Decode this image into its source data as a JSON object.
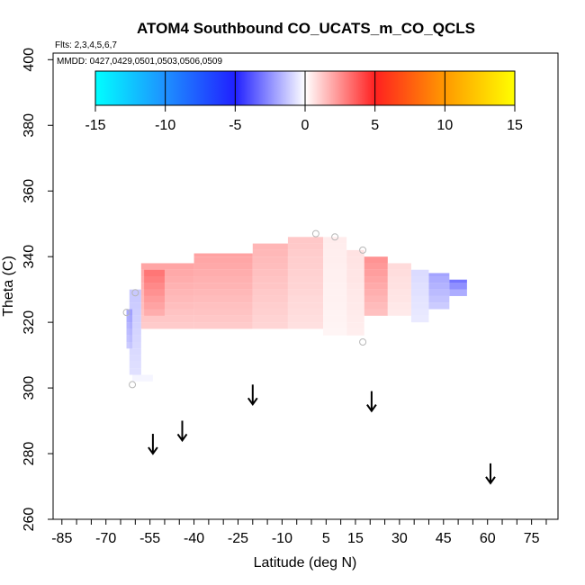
{
  "chart_data": {
    "type": "heatmap",
    "title": "ATOM4 Southbound CO_UCATS_m_CO_QCLS",
    "flights_label": "Flts: 2,3,4,5,6,7",
    "dates_label": "MMDD: 0427,0429,0501,0503,0506,0509",
    "xlabel": "Latitude (deg N)",
    "ylabel": "Theta (C)",
    "xlim": [
      -88,
      84
    ],
    "ylim": [
      260,
      402
    ],
    "x_ticks": [
      -85,
      -70,
      -55,
      -40,
      -25,
      -10,
      5,
      15,
      30,
      45,
      60,
      75
    ],
    "x_tick_labels": [
      "-85",
      "-70",
      "-55",
      "-40",
      "-25",
      "-10",
      "5",
      "15",
      "30",
      "45",
      "60",
      "75"
    ],
    "y_ticks": [
      260,
      280,
      300,
      320,
      340,
      360,
      380,
      400
    ],
    "y_tick_labels": [
      "260",
      "280",
      "300",
      "320",
      "340",
      "360",
      "380",
      "400"
    ],
    "colorbar": {
      "min": -15,
      "max": 15,
      "ticks": [
        -15,
        -10,
        -5,
        0,
        5,
        10,
        15
      ],
      "tick_labels": [
        "-15",
        "-10",
        "-5",
        "0",
        "5",
        "10",
        "15"
      ],
      "stops": [
        {
          "value": -15,
          "color": "#00ffff"
        },
        {
          "value": -10,
          "color": "#1e90ff"
        },
        {
          "value": -5,
          "color": "#2020ff"
        },
        {
          "value": 0,
          "color": "#ffffff"
        },
        {
          "value": 5,
          "color": "#ff2020"
        },
        {
          "value": 10,
          "color": "#ff9900"
        },
        {
          "value": 15,
          "color": "#ffff00"
        }
      ]
    },
    "profiles": [
      {
        "lat": -60.5,
        "theta_bottom": 301,
        "theta_top": 329,
        "value": -1.5
      },
      {
        "lat": 1.5,
        "theta_bottom": 315,
        "theta_top": 347,
        "value": 1.5
      },
      {
        "lat": 8,
        "theta_bottom": 316,
        "theta_top": 346,
        "value": 0.5
      },
      {
        "lat": 17.5,
        "theta_bottom": 314,
        "theta_top": 342,
        "value": 3.0
      }
    ],
    "cells": [
      {
        "lat0": -61,
        "lat1": -54,
        "th0": 302,
        "th1": 304,
        "value": -0.5
      },
      {
        "lat0": -62,
        "lat1": -58,
        "th0": 304,
        "th1": 330,
        "value": -1.5
      },
      {
        "lat0": -63,
        "lat1": -61,
        "th0": 312,
        "th1": 324,
        "value": -2.5
      },
      {
        "lat0": -58,
        "lat1": -40,
        "th0": 318,
        "th1": 338,
        "value": 2.5
      },
      {
        "lat0": -57,
        "lat1": -50,
        "th0": 322,
        "th1": 336,
        "value": 3.5
      },
      {
        "lat0": -40,
        "lat1": -20,
        "th0": 318,
        "th1": 341,
        "value": 2.5
      },
      {
        "lat0": -20,
        "lat1": -8,
        "th0": 318,
        "th1": 344,
        "value": 2.0
      },
      {
        "lat0": -8,
        "lat1": 4,
        "th0": 318,
        "th1": 346,
        "value": 1.5
      },
      {
        "lat0": 4,
        "lat1": 12,
        "th0": 316,
        "th1": 346,
        "value": 0.5
      },
      {
        "lat0": 12,
        "lat1": 18,
        "th0": 316,
        "th1": 342,
        "value": 0.8
      },
      {
        "lat0": 18,
        "lat1": 26,
        "th0": 322,
        "th1": 340,
        "value": 3.0
      },
      {
        "lat0": 26,
        "lat1": 34,
        "th0": 322,
        "th1": 338,
        "value": 1.0
      },
      {
        "lat0": 34,
        "lat1": 40,
        "th0": 320,
        "th1": 336,
        "value": -1.0
      },
      {
        "lat0": 40,
        "lat1": 47,
        "th0": 324,
        "th1": 335,
        "value": -2.5
      },
      {
        "lat0": 47,
        "lat1": 53,
        "th0": 328,
        "th1": 333,
        "value": -4.0
      }
    ],
    "markers": [
      {
        "lat": -61,
        "theta": 301
      },
      {
        "lat": -60,
        "theta": 329
      },
      {
        "lat": -63,
        "theta": 323
      },
      {
        "lat": 1.5,
        "theta": 347
      },
      {
        "lat": 8,
        "theta": 346
      },
      {
        "lat": 17.5,
        "theta": 342
      },
      {
        "lat": 17.5,
        "theta": 314
      }
    ],
    "arrows": [
      {
        "lat": -54,
        "theta": 280
      },
      {
        "lat": -44,
        "theta": 284
      },
      {
        "lat": -20,
        "theta": 295
      },
      {
        "lat": 20.5,
        "theta": 293
      },
      {
        "lat": 61,
        "theta": 271
      }
    ]
  }
}
